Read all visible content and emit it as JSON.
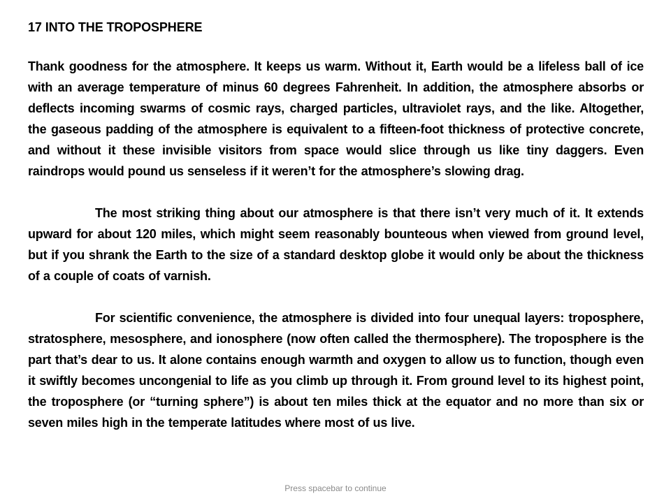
{
  "document": {
    "heading": "17 INTO THE TROPOSPHERE",
    "paragraphs": [
      "Thank goodness for the atmosphere. It keeps us warm. Without it, Earth would be a lifeless ball of ice with an average temperature of minus 60 degrees Fahrenheit. In addition, the atmosphere absorbs or deflects incoming swarms of cosmic rays, charged particles, ultraviolet rays, and the like. Altogether, the gaseous padding of the atmosphere is equivalent to a fifteen-foot thickness of protective concrete, and without it these invisible visitors from space would slice through us like tiny daggers. Even raindrops would pound us senseless if it weren’t for the atmosphere’s slowing drag.",
      "The most striking thing about our atmosphere is that there isn’t very much of it. It extends upward for about 120 miles, which might seem reasonably bounteous when viewed from ground level, but if you shrank the Earth to the size of a standard desktop globe it would only be about the thickness of a couple of coats of varnish.",
      "For scientific convenience, the atmosphere is divided into four unequal layers: troposphere, stratosphere, mesosphere, and ionosphere (now often called the thermosphere). The troposphere is the part that’s dear to us. It alone contains enough warmth and oxygen to allow us to function, though even it swiftly becomes uncongenial to life as you climb up through it. From ground level to its highest point, the troposphere (or “turning sphere”) is about ten miles thick at the equator and no more than six or seven miles high in the temperate latitudes where most of us live."
    ]
  },
  "footer": {
    "prompt": "Press spacebar to continue"
  }
}
